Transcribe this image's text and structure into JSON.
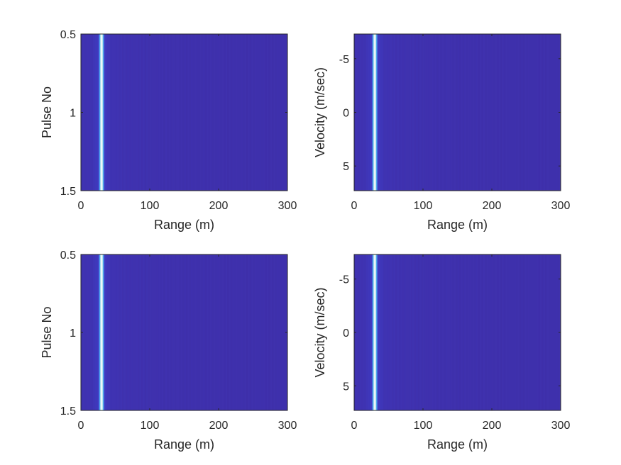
{
  "chart_data": [
    {
      "type": "heatmap",
      "xlabel": "Range (m)",
      "ylabel": "Pulse No",
      "xlim": [
        0,
        300
      ],
      "ylim": [
        0.5,
        1.5
      ],
      "y_direction": "reverse",
      "xticks": [
        "0",
        "100",
        "200",
        "300"
      ],
      "yticks": [
        "0.5",
        "1",
        "1.5"
      ],
      "xtick_values": [
        0,
        100,
        200,
        300
      ],
      "ytick_values": [
        0.5,
        1,
        1.5
      ],
      "peak_range": 30,
      "background_color": "#3e2da6",
      "peak_color": "#f2f7fa"
    },
    {
      "type": "heatmap",
      "xlabel": "Range (m)",
      "ylabel": "Velocity (m/sec)",
      "xlim": [
        0,
        300
      ],
      "ylim": [
        -7.3,
        7.3
      ],
      "y_direction": "reverse",
      "xticks": [
        "0",
        "100",
        "200",
        "300"
      ],
      "yticks": [
        "-5",
        "0",
        "5"
      ],
      "xtick_values": [
        0,
        100,
        200,
        300
      ],
      "ytick_values": [
        -5,
        0,
        5
      ],
      "peak_range": 30,
      "background_color": "#3e2da6",
      "peak_color": "#f2f7fa"
    },
    {
      "type": "heatmap",
      "xlabel": "Range (m)",
      "ylabel": "Pulse No",
      "xlim": [
        0,
        300
      ],
      "ylim": [
        0.5,
        1.5
      ],
      "y_direction": "reverse",
      "xticks": [
        "0",
        "100",
        "200",
        "300"
      ],
      "yticks": [
        "0.5",
        "1",
        "1.5"
      ],
      "xtick_values": [
        0,
        100,
        200,
        300
      ],
      "ytick_values": [
        0.5,
        1,
        1.5
      ],
      "peak_range": 30,
      "background_color": "#3e2da6",
      "peak_color": "#f2f7fa"
    },
    {
      "type": "heatmap",
      "xlabel": "Range (m)",
      "ylabel": "Velocity (m/sec)",
      "xlim": [
        0,
        300
      ],
      "ylim": [
        -7.3,
        7.3
      ],
      "y_direction": "reverse",
      "xticks": [
        "0",
        "100",
        "200",
        "300"
      ],
      "yticks": [
        "-5",
        "0",
        "5"
      ],
      "xtick_values": [
        0,
        100,
        200,
        300
      ],
      "ytick_values": [
        -5,
        0,
        5
      ],
      "peak_range": 30,
      "background_color": "#3e2da6",
      "peak_color": "#f2f7fa"
    }
  ]
}
